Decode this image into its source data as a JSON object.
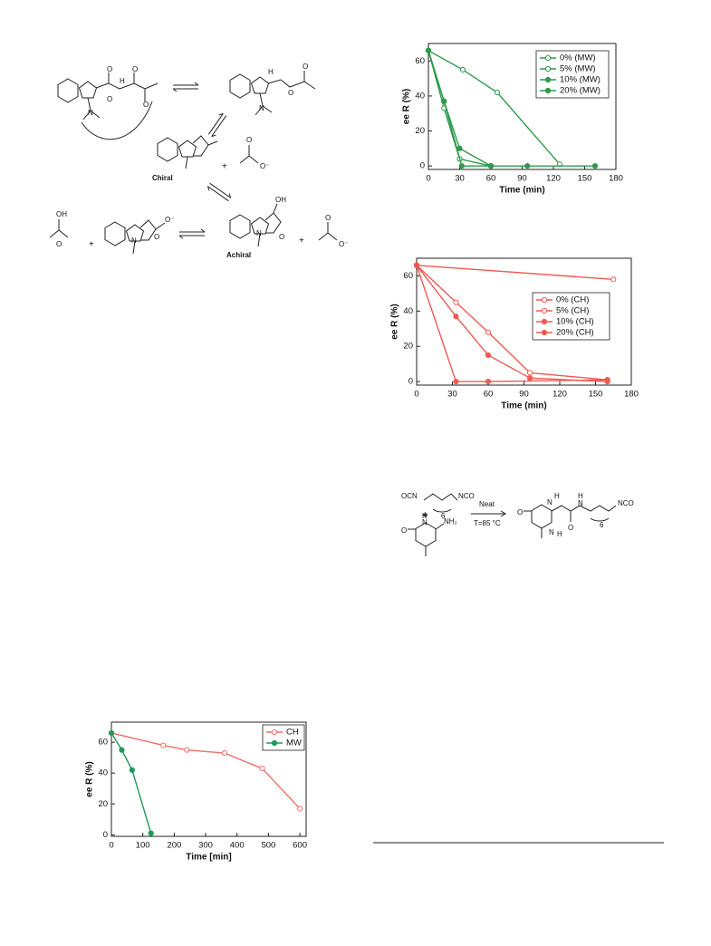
{
  "chart_data": [
    {
      "type": "line",
      "xlabel": "Time (min)",
      "ylabel": "ee R (%)",
      "xlim": [
        0,
        180
      ],
      "xticks": [
        0,
        30,
        60,
        90,
        120,
        150,
        180
      ],
      "ylim": [
        -2,
        70
      ],
      "yticks": [
        0,
        20,
        40,
        60
      ],
      "legend": "upper right",
      "series": [
        {
          "name": "0% (MW)",
          "color": "#2e9a4e",
          "marker": "open",
          "x": [
            0,
            33,
            66,
            126
          ],
          "values": [
            66,
            55,
            42,
            1
          ]
        },
        {
          "name": "5% (MW)",
          "color": "#2e9a4e",
          "marker": "open",
          "x": [
            0,
            15,
            30,
            60
          ],
          "values": [
            66,
            33,
            4,
            0
          ]
        },
        {
          "name": "10% (MW)",
          "color": "#2e9a4e",
          "marker": "filled",
          "x": [
            0,
            15,
            30,
            60
          ],
          "values": [
            66,
            37,
            10,
            0
          ]
        },
        {
          "name": "20% (MW)",
          "color": "#2e9a4e",
          "marker": "filled",
          "x": [
            0,
            15,
            32,
            60,
            95,
            160
          ],
          "values": [
            66,
            37,
            0,
            0,
            0,
            0
          ]
        }
      ]
    },
    {
      "type": "line",
      "xlabel": "Time (min)",
      "ylabel": "ee R (%)",
      "xlim": [
        0,
        180
      ],
      "xticks": [
        0,
        30,
        60,
        90,
        120,
        150,
        180
      ],
      "ylim": [
        -2,
        70
      ],
      "yticks": [
        0,
        20,
        40,
        60
      ],
      "legend": "center right",
      "series": [
        {
          "name": "0% (CH)",
          "color": "#ee5a52",
          "marker": "open",
          "x": [
            0,
            165
          ],
          "values": [
            66,
            58
          ]
        },
        {
          "name": "5% (CH)",
          "color": "#ee5a52",
          "marker": "open",
          "x": [
            0,
            33,
            60,
            95,
            160
          ],
          "values": [
            66,
            45,
            28,
            5,
            1
          ]
        },
        {
          "name": "10% (CH)",
          "color": "#ee5a52",
          "marker": "filled",
          "x": [
            0,
            33,
            60,
            95,
            160
          ],
          "values": [
            66,
            37,
            15,
            2,
            0
          ]
        },
        {
          "name": "20% (CH)",
          "color": "#ee5a52",
          "marker": "filled",
          "x": [
            0,
            33,
            60,
            160
          ],
          "values": [
            66,
            0,
            0,
            1
          ]
        }
      ]
    },
    {
      "type": "line",
      "xlabel": "Time [min]",
      "ylabel": "ee R (%)",
      "xlim": [
        0,
        620
      ],
      "xticks": [
        0,
        100,
        200,
        300,
        400,
        500,
        600
      ],
      "ylim": [
        -1,
        73
      ],
      "yticks": [
        0,
        20,
        40,
        60
      ],
      "legend": "upper right",
      "series": [
        {
          "name": "CH",
          "color": "#ee6f66",
          "marker": "open",
          "x": [
            0,
            165,
            240,
            360,
            480,
            600
          ],
          "values": [
            66,
            58,
            55,
            53,
            43,
            17
          ]
        },
        {
          "name": "MW",
          "color": "#1f9a5a",
          "marker": "filled",
          "x": [
            0,
            33,
            66,
            126
          ],
          "values": [
            66,
            55,
            42,
            1
          ]
        }
      ]
    }
  ],
  "scheme1": {
    "labels": [
      "N",
      "O",
      "O",
      "H",
      "O",
      "O",
      "N",
      "H",
      "O",
      "O",
      "Chiral",
      "+",
      "O",
      "O⁻",
      "OH",
      "O",
      "+",
      "O",
      "N",
      "O⁻",
      "N",
      "O",
      "OH",
      "Achiral",
      "+",
      "O",
      "O⁻"
    ]
  },
  "scheme2": {
    "labels": [
      "OCN",
      "6",
      "NCO",
      "+",
      "O",
      "N",
      "H",
      "NH₂",
      "Neat",
      "T=85 °C",
      "O",
      "N",
      "N",
      "H",
      "H",
      "N",
      "H",
      "O",
      "6",
      "NCO"
    ]
  }
}
